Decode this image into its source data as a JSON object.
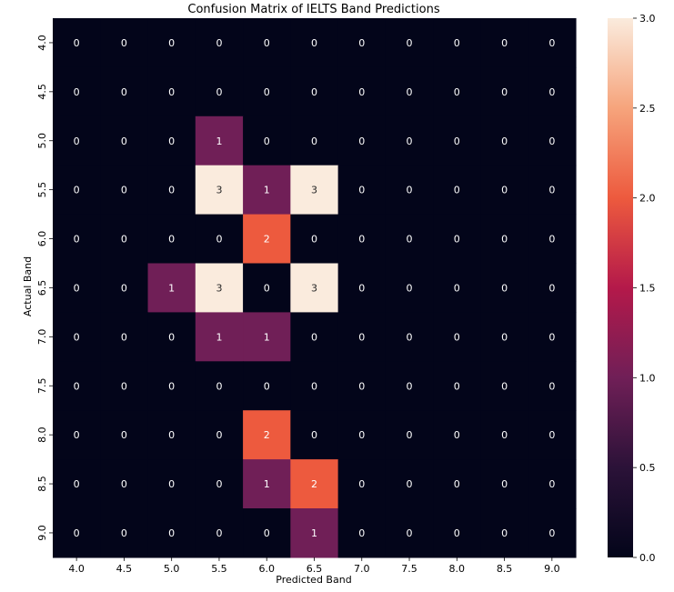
{
  "chart_data": {
    "type": "heatmap",
    "title": "Confusion Matrix of IELTS Band Predictions",
    "xlabel": "Predicted Band",
    "ylabel": "Actual Band",
    "x_categories": [
      "4.0",
      "4.5",
      "5.0",
      "5.5",
      "6.0",
      "6.5",
      "7.0",
      "7.5",
      "8.0",
      "8.5",
      "9.0"
    ],
    "y_categories": [
      "4.0",
      "4.5",
      "5.0",
      "5.5",
      "6.0",
      "6.5",
      "7.0",
      "7.5",
      "8.0",
      "8.5",
      "9.0"
    ],
    "values": [
      [
        0,
        0,
        0,
        0,
        0,
        0,
        0,
        0,
        0,
        0,
        0
      ],
      [
        0,
        0,
        0,
        0,
        0,
        0,
        0,
        0,
        0,
        0,
        0
      ],
      [
        0,
        0,
        0,
        1,
        0,
        0,
        0,
        0,
        0,
        0,
        0
      ],
      [
        0,
        0,
        0,
        3,
        1,
        3,
        0,
        0,
        0,
        0,
        0
      ],
      [
        0,
        0,
        0,
        0,
        2,
        0,
        0,
        0,
        0,
        0,
        0
      ],
      [
        0,
        0,
        1,
        3,
        0,
        3,
        0,
        0,
        0,
        0,
        0
      ],
      [
        0,
        0,
        0,
        1,
        1,
        0,
        0,
        0,
        0,
        0,
        0
      ],
      [
        0,
        0,
        0,
        0,
        0,
        0,
        0,
        0,
        0,
        0,
        0
      ],
      [
        0,
        0,
        0,
        0,
        2,
        0,
        0,
        0,
        0,
        0,
        0
      ],
      [
        0,
        0,
        0,
        0,
        1,
        2,
        0,
        0,
        0,
        0,
        0
      ],
      [
        0,
        0,
        0,
        0,
        0,
        1,
        0,
        0,
        0,
        0,
        0
      ]
    ],
    "colorbar": {
      "range": [
        0,
        3
      ],
      "ticks": [
        "0.0",
        "0.5",
        "1.0",
        "1.5",
        "2.0",
        "2.5",
        "3.0"
      ],
      "colormap": "rocket",
      "colors": {
        "0": "#03051a",
        "1": "#701f57",
        "2": "#ed5a3e",
        "3": "#faebdd"
      }
    },
    "legend": "colorbar-right",
    "grid": false
  }
}
